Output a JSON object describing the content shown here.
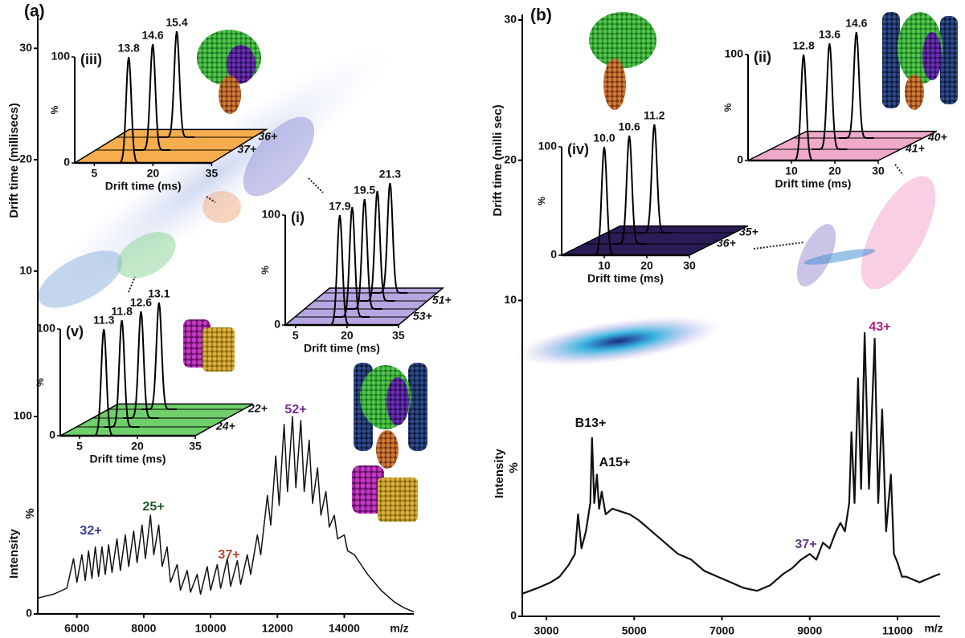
{
  "chart_data": [
    {
      "type": "line",
      "label": "(a)",
      "x_label": "m/z",
      "y_label": "Intensity",
      "y_unit": "%",
      "y2_label": "Drift time (millisecs)",
      "color": "#111111",
      "x": [
        4830,
        5300,
        5700,
        5900,
        6000,
        6150,
        6250,
        6350,
        6450,
        6550,
        6650,
        6750,
        6850,
        6950,
        7050,
        7200,
        7300,
        7450,
        7550,
        7700,
        7800,
        7950,
        8050,
        8200,
        8300,
        8450,
        8550,
        8700,
        8800,
        9000,
        9100,
        9300,
        9400,
        9600,
        9700,
        9900,
        10000,
        10200,
        10300,
        10500,
        10600,
        10800,
        10900,
        11100,
        11200,
        11400,
        11500,
        11700,
        11800,
        11950,
        12050,
        12200,
        12300,
        12450,
        12550,
        12700,
        12800,
        12950,
        13050,
        13200,
        13300,
        13450,
        13550,
        13700,
        13800,
        14000,
        14100,
        14300,
        14500,
        14700,
        14900,
        15100,
        15300,
        15500,
        15800,
        16080
      ],
      "values": [
        8,
        10,
        13,
        28,
        16,
        30,
        17,
        32,
        18,
        34,
        19,
        34,
        20,
        35,
        21,
        38,
        22,
        40,
        24,
        42,
        26,
        45,
        28,
        50,
        30,
        45,
        24,
        34,
        16,
        25,
        12,
        22,
        11,
        20,
        10,
        24,
        12,
        25,
        13,
        28,
        14,
        27,
        15,
        30,
        20,
        40,
        30,
        60,
        45,
        80,
        55,
        96,
        62,
        100,
        64,
        98,
        62,
        88,
        56,
        74,
        50,
        62,
        44,
        50,
        38,
        40,
        32,
        30,
        25,
        20,
        16,
        12,
        9,
        6,
        3,
        1
      ],
      "xlim": [
        4830,
        16080
      ],
      "xticks": [
        6000,
        8000,
        10000,
        12000,
        14000
      ],
      "ylim": [
        0,
        100
      ],
      "yticks": [
        0,
        100
      ],
      "y2lim": [
        6.6,
        32.9
      ],
      "y2ticks": [
        10,
        20,
        30
      ],
      "annotations": [
        {
          "text": "32+",
          "color": "#3a3a9a"
        },
        {
          "text": "25+",
          "color": "#1f5a2a"
        },
        {
          "text": "37+",
          "color": "#b5452a"
        },
        {
          "text": "52+",
          "color": "#7a2a9a"
        }
      ]
    },
    {
      "type": "ridgeline",
      "label": "(iii)",
      "x_label": "Drift time (ms)",
      "y_label": "%",
      "color": "#f6ad4e",
      "x": [
        13.8,
        14.6,
        15.4
      ],
      "peak_labels": [
        13.8,
        14.6,
        15.4
      ],
      "values": [
        100,
        100,
        100
      ],
      "charges": [
        "36+",
        "37+"
      ],
      "xlim": [
        0,
        35
      ],
      "xticks": [
        5,
        20,
        35
      ],
      "ylim": [
        0,
        100
      ],
      "yticks": [
        0,
        100
      ]
    },
    {
      "type": "ridgeline",
      "label": "(i)",
      "x_label": "Drift time (ms)",
      "y_label": "%",
      "color": "#b6a6e0",
      "x": [
        17.9,
        18.7,
        19.5,
        20.4,
        21.3
      ],
      "peak_labels": [
        17.9,
        null,
        19.5,
        null,
        21.3
      ],
      "values": [
        100,
        100,
        100,
        100,
        100
      ],
      "charges": [
        "51+",
        "53+"
      ],
      "xlim": [
        2,
        35
      ],
      "xticks": [
        5,
        20,
        35
      ],
      "ylim": [
        0,
        100
      ],
      "yticks": [
        0,
        100
      ]
    },
    {
      "type": "ridgeline",
      "label": "(v)",
      "x_label": "Drift time (ms)",
      "y_label": "%",
      "color": "#6fcf6a",
      "x": [
        11.3,
        11.8,
        12.6,
        13.1
      ],
      "peak_labels": [
        11.3,
        11.8,
        12.6,
        13.1
      ],
      "values": [
        100,
        100,
        100,
        100
      ],
      "charges": [
        "22+",
        "24+"
      ],
      "xlim": [
        0,
        35
      ],
      "xticks": [
        5,
        20,
        35
      ],
      "ylim": [
        0,
        100
      ],
      "yticks": [
        0,
        100
      ]
    },
    {
      "type": "line",
      "label": "(b)",
      "x_label": "m/z",
      "y_label": "Intensity",
      "y_unit": "%",
      "y2_label": "Drift time (milli sec)",
      "color": "#111111",
      "x": [
        2450,
        2800,
        3100,
        3300,
        3500,
        3650,
        3720,
        3800,
        3900,
        4000,
        4040,
        4090,
        4150,
        4200,
        4260,
        4350,
        4500,
        4700,
        4900,
        5100,
        5400,
        5700,
        6000,
        6300,
        6600,
        6900,
        7200,
        7500,
        7800,
        8100,
        8400,
        8600,
        8800,
        9000,
        9150,
        9300,
        9450,
        9600,
        9700,
        9800,
        9900,
        9950,
        10020,
        10100,
        10170,
        10250,
        10350,
        10480,
        10560,
        10650,
        10740,
        10850,
        10920,
        11000,
        11100,
        11200,
        11500,
        11800,
        11970
      ],
      "values": [
        8,
        10,
        12,
        14,
        18,
        22,
        36,
        24,
        30,
        40,
        63,
        40,
        50,
        38,
        44,
        36,
        38,
        37,
        36,
        34,
        30,
        26,
        22,
        20,
        16,
        14,
        12,
        10,
        9,
        11,
        15,
        17,
        20,
        22,
        20,
        26,
        24,
        30,
        33,
        30,
        40,
        65,
        40,
        84,
        45,
        100,
        45,
        98,
        40,
        73,
        30,
        50,
        22,
        19,
        14,
        14,
        12,
        14,
        15
      ],
      "xlim": [
        2450,
        11970
      ],
      "xticks": [
        3000,
        5000,
        7000,
        9000,
        11000
      ],
      "ylim": [
        0,
        100
      ],
      "yticks": [
        0
      ],
      "y2lim": [
        5.1,
        30.4
      ],
      "y2ticks": [
        10,
        20,
        30
      ],
      "annotations": [
        {
          "text": "B13+",
          "color": "#111111"
        },
        {
          "text": "A15+",
          "color": "#111111"
        },
        {
          "text": "37+",
          "color": "#5a3d8a"
        },
        {
          "text": "43+",
          "color": "#b0207a"
        }
      ]
    },
    {
      "type": "ridgeline",
      "label": "(iv)",
      "x_label": "Drift time (ms)",
      "y_label": "%",
      "color": "#2b1b57",
      "x": [
        10.0,
        10.6,
        11.2
      ],
      "peak_labels": [
        {
          "value": 10.0,
          "label": "10.0"
        },
        10.6,
        11.2
      ],
      "values": [
        100,
        100,
        100
      ],
      "charges": [
        "35+",
        "36+"
      ],
      "xlim": [
        0,
        30
      ],
      "xticks": [
        10,
        20,
        30
      ],
      "ylim": [
        0,
        100
      ],
      "yticks": [
        0,
        100
      ]
    },
    {
      "type": "ridgeline",
      "label": "(ii)",
      "x_label": "Drift time (ms)",
      "y_label": "%",
      "color": "#eeaac8",
      "x": [
        12.8,
        13.6,
        14.6
      ],
      "peak_labels": [
        12.8,
        13.6,
        14.6
      ],
      "values": [
        100,
        100,
        100
      ],
      "charges": [
        "40+",
        "41+"
      ],
      "xlim": [
        0,
        30
      ],
      "xticks": [
        10,
        20,
        30
      ],
      "ylim": [
        0,
        100
      ],
      "yticks": [
        0,
        100
      ]
    }
  ]
}
